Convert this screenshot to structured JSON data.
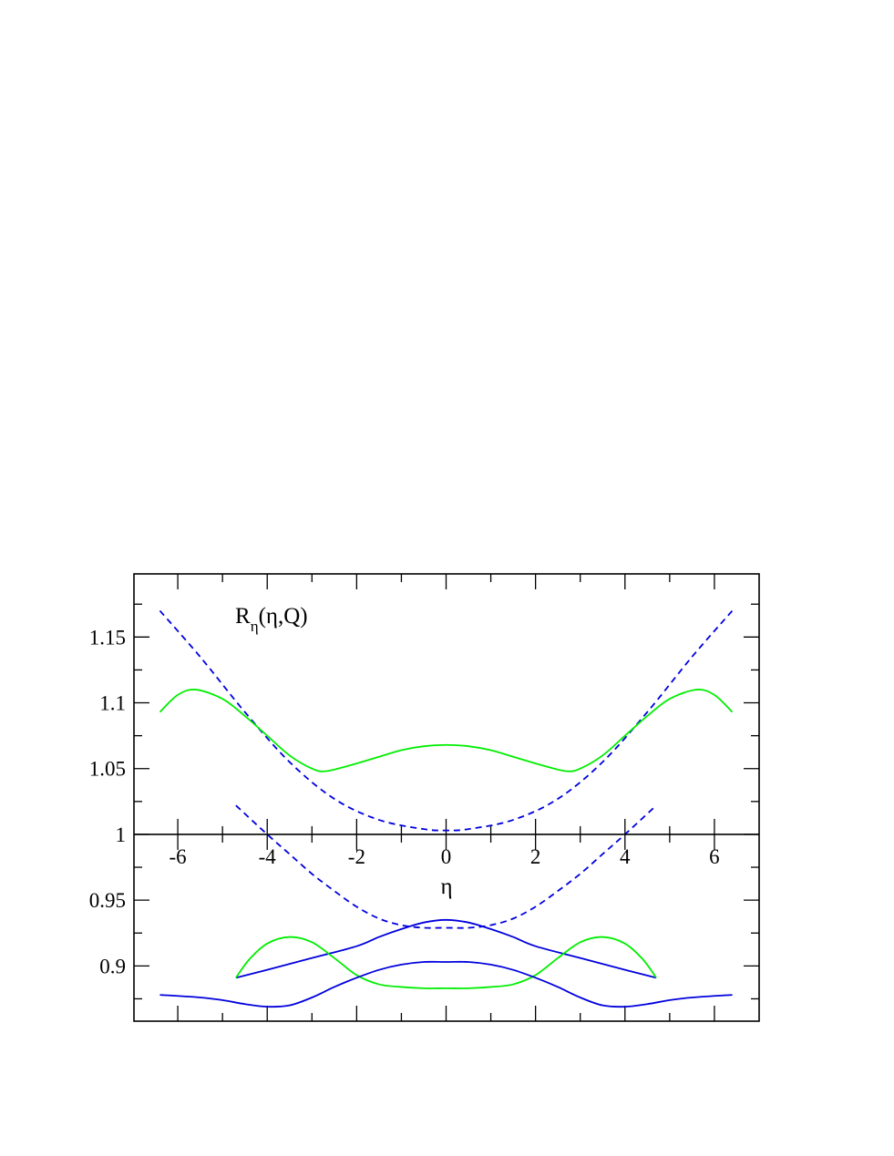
{
  "chart_data": {
    "type": "line",
    "title": "",
    "annotation": {
      "main": "R",
      "subscript": "η",
      "rest": "(η,Q)"
    },
    "xlabel": "η",
    "ylabel": "",
    "xlim": [
      -6.98,
      7.0
    ],
    "ylim": [
      0.858,
      1.198
    ],
    "x_axis_crosses_y": 1.0,
    "grid": false,
    "legend": "none",
    "x_ticks": [
      {
        "value": -6,
        "label": "-6"
      },
      {
        "value": -4,
        "label": "-4"
      },
      {
        "value": -2,
        "label": "-2"
      },
      {
        "value": 0,
        "label": "0"
      },
      {
        "value": 2,
        "label": "2"
      },
      {
        "value": 4,
        "label": "4"
      },
      {
        "value": 6,
        "label": "6"
      }
    ],
    "y_ticks": [
      {
        "value": 0.9,
        "label": "0.9"
      },
      {
        "value": 0.95,
        "label": "0.95"
      },
      {
        "value": 1.0,
        "label": "1"
      },
      {
        "value": 1.05,
        "label": "1.05"
      },
      {
        "value": 1.1,
        "label": "1.1"
      },
      {
        "value": 1.15,
        "label": "1.15"
      }
    ],
    "y_minor_step": 0.025,
    "series": [
      {
        "color": "#0000dd",
        "dash": "dashed",
        "x": [
          -6.4,
          -5.5,
          -4.5,
          -3.5,
          -2.5,
          -1.5,
          -0.5,
          0,
          0.5,
          1.5,
          2.5,
          3.5,
          4.5,
          5.5,
          6.4
        ],
        "y": [
          1.17,
          1.135,
          1.093,
          1.055,
          1.027,
          1.011,
          1.004,
          1.003,
          1.004,
          1.011,
          1.027,
          1.055,
          1.093,
          1.135,
          1.17
        ]
      },
      {
        "color": "#00ee00",
        "dash": "solid",
        "x": [
          -6.4,
          -6.0,
          -5.6,
          -5.0,
          -4.5,
          -4.0,
          -3.5,
          -3.0,
          -2.7,
          -2.2,
          -1.5,
          -1.0,
          -0.5,
          0,
          0.5,
          1.0,
          1.5,
          2.2,
          2.7,
          3.0,
          3.5,
          4.0,
          4.5,
          5.0,
          5.6,
          6.0,
          6.4
        ],
        "y": [
          1.093,
          1.106,
          1.11,
          1.103,
          1.09,
          1.075,
          1.06,
          1.05,
          1.048,
          1.052,
          1.059,
          1.064,
          1.067,
          1.068,
          1.067,
          1.064,
          1.059,
          1.052,
          1.048,
          1.05,
          1.06,
          1.075,
          1.09,
          1.103,
          1.11,
          1.106,
          1.093
        ]
      },
      {
        "color": "#0000dd",
        "dash": "dashed",
        "x": [
          -4.7,
          -4.0,
          -3.5,
          -3.0,
          -2.5,
          -2.0,
          -1.5,
          -1.0,
          -0.5,
          0,
          0.5,
          1.0,
          1.5,
          2.0,
          2.5,
          3.0,
          3.5,
          4.0,
          4.7
        ],
        "y": [
          1.022,
          1.0,
          0.985,
          0.97,
          0.957,
          0.945,
          0.936,
          0.931,
          0.929,
          0.929,
          0.929,
          0.931,
          0.936,
          0.945,
          0.957,
          0.97,
          0.985,
          1.0,
          1.022
        ]
      },
      {
        "color": "#0000dd",
        "dash": "solid",
        "x": [
          -4.7,
          -4.0,
          -3.0,
          -2.0,
          -1.5,
          -1.0,
          -0.5,
          0,
          0.5,
          1.0,
          1.5,
          2.0,
          3.0,
          4.0,
          4.7
        ],
        "y": [
          0.891,
          0.897,
          0.906,
          0.915,
          0.922,
          0.928,
          0.933,
          0.935,
          0.933,
          0.928,
          0.922,
          0.915,
          0.906,
          0.897,
          0.891
        ]
      },
      {
        "color": "#00ee00",
        "dash": "solid",
        "x": [
          -4.7,
          -4.4,
          -4.0,
          -3.5,
          -3.0,
          -2.5,
          -2.0,
          -1.5,
          -1.0,
          -0.5,
          0,
          0.5,
          1.0,
          1.5,
          2.0,
          2.5,
          3.0,
          3.5,
          4.0,
          4.4,
          4.7
        ],
        "y": [
          0.891,
          0.905,
          0.917,
          0.922,
          0.918,
          0.906,
          0.893,
          0.886,
          0.884,
          0.883,
          0.883,
          0.883,
          0.884,
          0.886,
          0.893,
          0.906,
          0.918,
          0.922,
          0.917,
          0.905,
          0.891
        ]
      },
      {
        "color": "#0000dd",
        "dash": "solid",
        "x": [
          -6.4,
          -5.5,
          -5.0,
          -4.5,
          -4.0,
          -3.5,
          -3.0,
          -2.5,
          -2.0,
          -1.5,
          -1.0,
          -0.5,
          0,
          0.5,
          1.0,
          1.5,
          2.0,
          2.5,
          3.0,
          3.5,
          4.0,
          4.5,
          5.0,
          5.5,
          6.4
        ],
        "y": [
          0.878,
          0.876,
          0.874,
          0.871,
          0.869,
          0.87,
          0.876,
          0.884,
          0.891,
          0.897,
          0.901,
          0.903,
          0.903,
          0.903,
          0.901,
          0.897,
          0.891,
          0.884,
          0.876,
          0.87,
          0.869,
          0.871,
          0.874,
          0.876,
          0.878
        ]
      }
    ]
  }
}
